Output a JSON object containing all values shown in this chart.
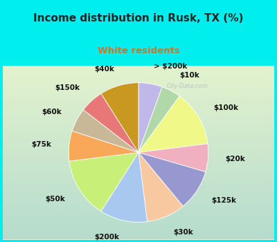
{
  "title": "Income distribution in Rusk, TX (%)",
  "subtitle": "White residents",
  "title_fontsize": 11,
  "subtitle_fontsize": 9.5,
  "title_color": "#222222",
  "subtitle_color": "#cc7722",
  "background_color": "#00eeee",
  "chart_bg_start": "#e0f5e0",
  "chart_bg_end": "#f0fff8",
  "watermark": "City-Data.com",
  "labels": [
    "> $200k",
    "$10k",
    "$100k",
    "$20k",
    "$125k",
    "$30k",
    "$200k",
    "$50k",
    "$75k",
    "$60k",
    "$150k",
    "$40k"
  ],
  "sizes": [
    5.5,
    4.5,
    13.0,
    6.5,
    9.5,
    9.0,
    11.0,
    14.0,
    7.0,
    5.5,
    5.5,
    9.0
  ],
  "colors": [
    "#c0b8e8",
    "#b0d8a8",
    "#f0f888",
    "#f0b0c0",
    "#9898d0",
    "#f8c8a0",
    "#a8c8f0",
    "#c8f078",
    "#f8a858",
    "#c8b898",
    "#e87878",
    "#c89820"
  ],
  "startangle": 90,
  "label_fontsize": 7.5,
  "labeldistance": 1.25
}
